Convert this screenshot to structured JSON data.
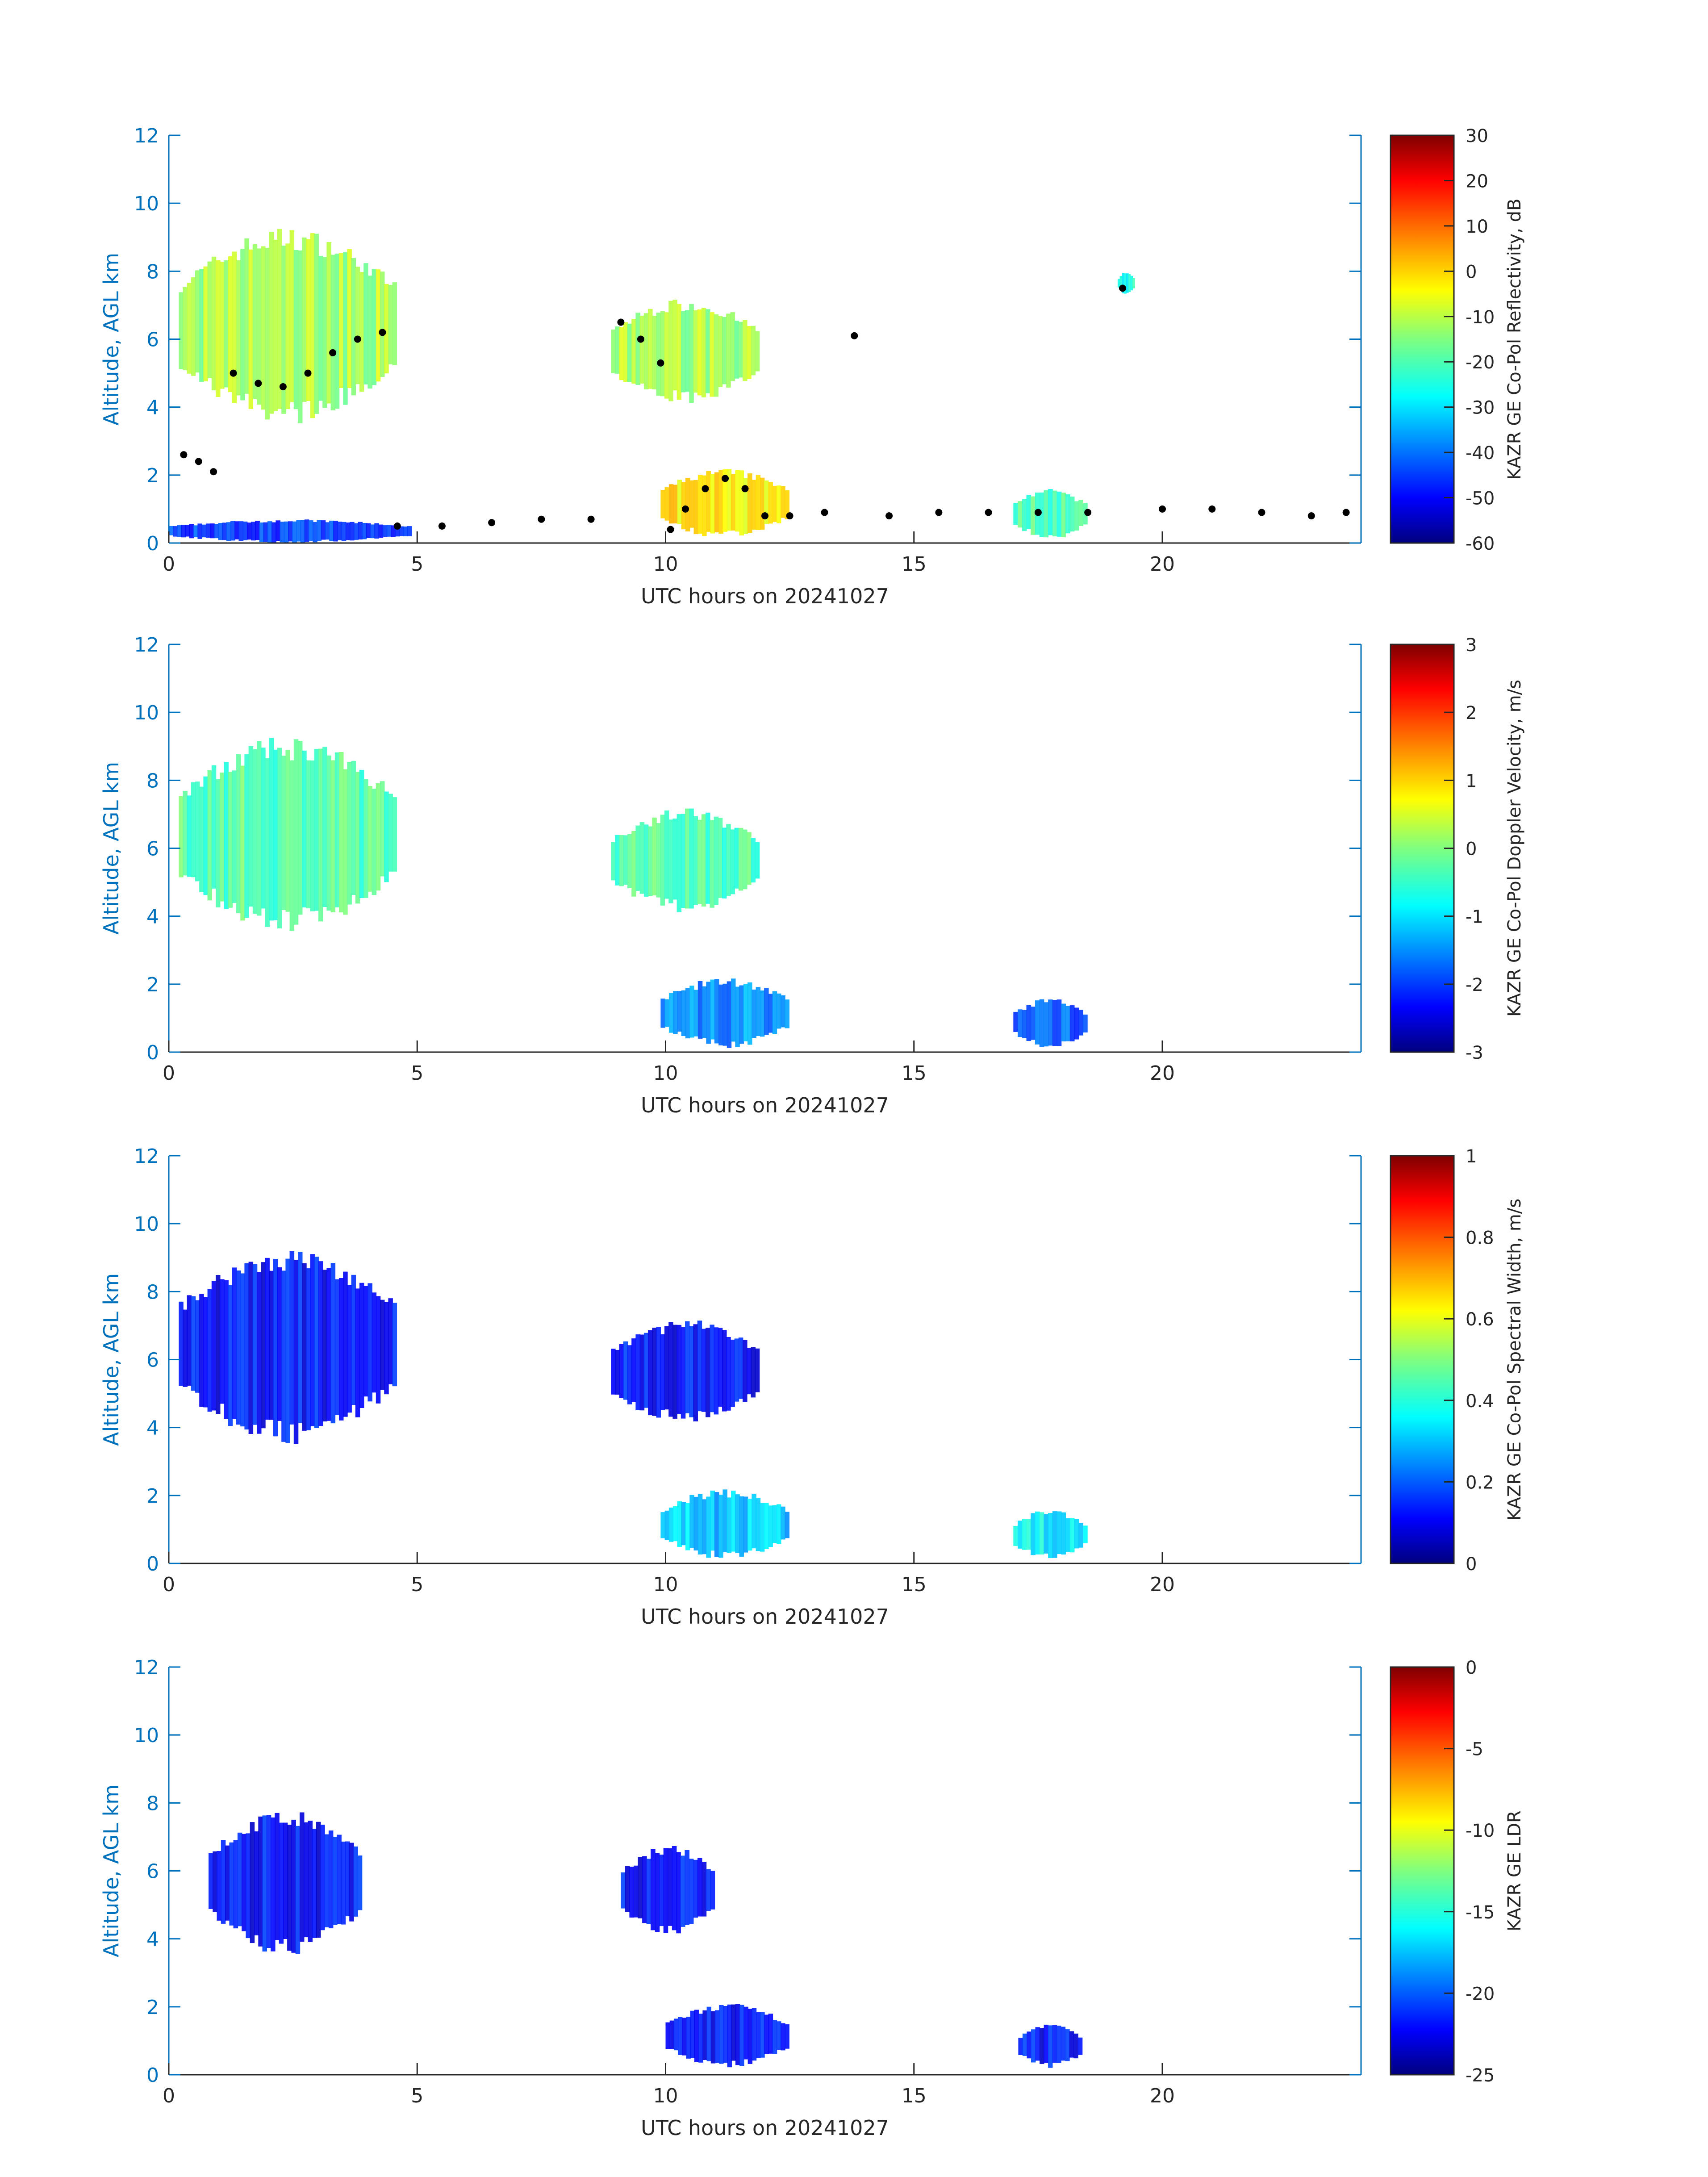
{
  "figure": {
    "axis_color": "#0072bd",
    "colormap": "jet",
    "marker_color": "#000000"
  },
  "chart_data": [
    {
      "type": "heatmap",
      "name": "reflectivity",
      "xlabel": "UTC hours on 20241027",
      "ylabel": "Altitude, AGL km",
      "xlim": [
        0,
        24
      ],
      "ylim": [
        0,
        12
      ],
      "xticks": [
        "0",
        "5",
        "10",
        "15",
        "20"
      ],
      "yticks": [
        "0",
        "2",
        "4",
        "6",
        "8",
        "10",
        "12"
      ],
      "colorbar": {
        "label": "KAZR GE Co-Pol Reflectivity, dB",
        "range": [
          -60,
          30
        ],
        "ticks": [
          "-60",
          "-50",
          "-40",
          "-30",
          "-20",
          "-10",
          "0",
          "10",
          "20",
          "30"
        ]
      },
      "echo_regions": [
        {
          "x": [
            0.2,
            4.5
          ],
          "base": 3.5,
          "top": 9.3,
          "value": -12
        },
        {
          "x": [
            8.9,
            11.8
          ],
          "base": 4.1,
          "top": 7.2,
          "value": -12
        },
        {
          "x": [
            9.9,
            12.4
          ],
          "base": 0.1,
          "top": 2.2,
          "value": -2
        },
        {
          "x": [
            0.0,
            4.8
          ],
          "base": 0.0,
          "top": 0.7,
          "value": -45
        },
        {
          "x": [
            17.0,
            18.4
          ],
          "base": 0.1,
          "top": 1.6,
          "value": -20
        },
        {
          "x": [
            19.1,
            19.4
          ],
          "base": 7.3,
          "top": 8.0,
          "value": -25
        }
      ],
      "cloud_base_points": [
        {
          "x": 0.3,
          "y": 2.6
        },
        {
          "x": 0.6,
          "y": 2.4
        },
        {
          "x": 0.9,
          "y": 2.1
        },
        {
          "x": 1.3,
          "y": 5.0
        },
        {
          "x": 1.8,
          "y": 4.7
        },
        {
          "x": 2.3,
          "y": 4.6
        },
        {
          "x": 2.8,
          "y": 5.0
        },
        {
          "x": 3.3,
          "y": 5.6
        },
        {
          "x": 3.8,
          "y": 6.0
        },
        {
          "x": 4.3,
          "y": 6.2
        },
        {
          "x": 4.6,
          "y": 0.5
        },
        {
          "x": 5.5,
          "y": 0.5
        },
        {
          "x": 6.5,
          "y": 0.6
        },
        {
          "x": 7.5,
          "y": 0.7
        },
        {
          "x": 8.5,
          "y": 0.7
        },
        {
          "x": 9.1,
          "y": 6.5
        },
        {
          "x": 9.5,
          "y": 6.0
        },
        {
          "x": 9.9,
          "y": 5.3
        },
        {
          "x": 10.1,
          "y": 0.4
        },
        {
          "x": 10.4,
          "y": 1.0
        },
        {
          "x": 10.8,
          "y": 1.6
        },
        {
          "x": 11.2,
          "y": 1.9
        },
        {
          "x": 11.6,
          "y": 1.6
        },
        {
          "x": 12.0,
          "y": 0.8
        },
        {
          "x": 12.5,
          "y": 0.8
        },
        {
          "x": 13.2,
          "y": 0.9
        },
        {
          "x": 13.8,
          "y": 6.1
        },
        {
          "x": 14.5,
          "y": 0.8
        },
        {
          "x": 15.5,
          "y": 0.9
        },
        {
          "x": 16.5,
          "y": 0.9
        },
        {
          "x": 17.5,
          "y": 0.9
        },
        {
          "x": 18.5,
          "y": 0.9
        },
        {
          "x": 19.2,
          "y": 7.5
        },
        {
          "x": 20.0,
          "y": 1.0
        },
        {
          "x": 21.0,
          "y": 1.0
        },
        {
          "x": 22.0,
          "y": 0.9
        },
        {
          "x": 23.0,
          "y": 0.8
        },
        {
          "x": 23.7,
          "y": 0.9
        }
      ]
    },
    {
      "type": "heatmap",
      "name": "doppler_velocity",
      "xlabel": "UTC hours on 20241027",
      "ylabel": "Altitude, AGL km",
      "xlim": [
        0,
        24
      ],
      "ylim": [
        0,
        12
      ],
      "xticks": [
        "0",
        "5",
        "10",
        "15",
        "20"
      ],
      "yticks": [
        "0",
        "2",
        "4",
        "6",
        "8",
        "10",
        "12"
      ],
      "colorbar": {
        "label": "KAZR GE Co-Pol Doppler Velocity, m/s",
        "range": [
          -3,
          3
        ],
        "ticks": [
          "-3",
          "-2",
          "-1",
          "0",
          "1",
          "2",
          "3"
        ]
      },
      "echo_regions": [
        {
          "x": [
            0.2,
            4.5
          ],
          "base": 3.5,
          "top": 9.3,
          "value": -0.3
        },
        {
          "x": [
            8.9,
            11.8
          ],
          "base": 4.1,
          "top": 7.2,
          "value": -0.3
        },
        {
          "x": [
            9.9,
            12.4
          ],
          "base": 0.1,
          "top": 2.2,
          "value": -1.5
        },
        {
          "x": [
            17.0,
            18.4
          ],
          "base": 0.1,
          "top": 1.6,
          "value": -1.8
        }
      ]
    },
    {
      "type": "heatmap",
      "name": "spectral_width",
      "xlabel": "UTC hours on 20241027",
      "ylabel": "Altitude, AGL km",
      "xlim": [
        0,
        24
      ],
      "ylim": [
        0,
        12
      ],
      "xticks": [
        "0",
        "5",
        "10",
        "15",
        "20"
      ],
      "yticks": [
        "0",
        "2",
        "4",
        "6",
        "8",
        "10",
        "12"
      ],
      "colorbar": {
        "label": "KAZR GE Co-Pol Spectral Width, m/s",
        "range": [
          0,
          1
        ],
        "ticks": [
          "0",
          "0.2",
          "0.4",
          "0.6",
          "0.8",
          "1"
        ]
      },
      "echo_regions": [
        {
          "x": [
            0.2,
            4.5
          ],
          "base": 3.5,
          "top": 9.3,
          "value": 0.12
        },
        {
          "x": [
            8.9,
            11.8
          ],
          "base": 4.1,
          "top": 7.2,
          "value": 0.12
        },
        {
          "x": [
            9.9,
            12.4
          ],
          "base": 0.1,
          "top": 2.2,
          "value": 0.3
        },
        {
          "x": [
            17.0,
            18.4
          ],
          "base": 0.1,
          "top": 1.6,
          "value": 0.35
        }
      ]
    },
    {
      "type": "heatmap",
      "name": "ldr",
      "xlabel": "UTC hours on 20241027",
      "ylabel": "Altitude, AGL km",
      "xlim": [
        0,
        24
      ],
      "ylim": [
        0,
        12
      ],
      "xticks": [
        "0",
        "5",
        "10",
        "15",
        "20"
      ],
      "yticks": [
        "0",
        "2",
        "4",
        "6",
        "8",
        "10",
        "12"
      ],
      "colorbar": {
        "label": "KAZR GE LDR",
        "range": [
          -25,
          0
        ],
        "ticks": [
          "-25",
          "-20",
          "-15",
          "-10",
          "-5",
          "0"
        ]
      },
      "echo_regions": [
        {
          "x": [
            0.8,
            3.8
          ],
          "base": 3.5,
          "top": 7.8,
          "value": -22
        },
        {
          "x": [
            9.1,
            10.9
          ],
          "base": 4.1,
          "top": 6.8,
          "value": -22
        },
        {
          "x": [
            10.0,
            12.4
          ],
          "base": 0.2,
          "top": 2.1,
          "value": -22
        },
        {
          "x": [
            17.1,
            18.3
          ],
          "base": 0.2,
          "top": 1.5,
          "value": -22
        }
      ]
    }
  ]
}
